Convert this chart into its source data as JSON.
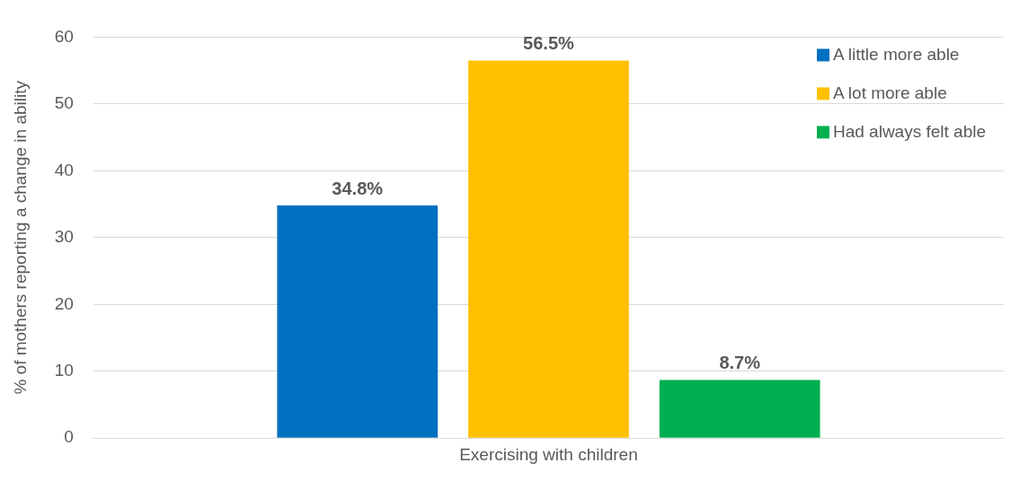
{
  "chart_data": {
    "type": "bar",
    "categories": [
      "Exercising with children"
    ],
    "ylabel": "% of mothers reporting a change in ability",
    "series": [
      {
        "name": "A little more able",
        "color": "#0070c0",
        "values": [
          34.8
        ],
        "value_labels": [
          "34.8%"
        ]
      },
      {
        "name": "A lot more able",
        "color": "#ffc000",
        "values": [
          56.5
        ],
        "value_labels": [
          "56.5%"
        ]
      },
      {
        "name": "Had always felt able",
        "color": "#00b050",
        "values": [
          8.7
        ],
        "value_labels": [
          "8.7%"
        ]
      }
    ],
    "ylim": [
      0,
      60
    ],
    "yticks": [
      0,
      10,
      20,
      30,
      40,
      50,
      60
    ],
    "grid": "y",
    "legend": "top right"
  }
}
